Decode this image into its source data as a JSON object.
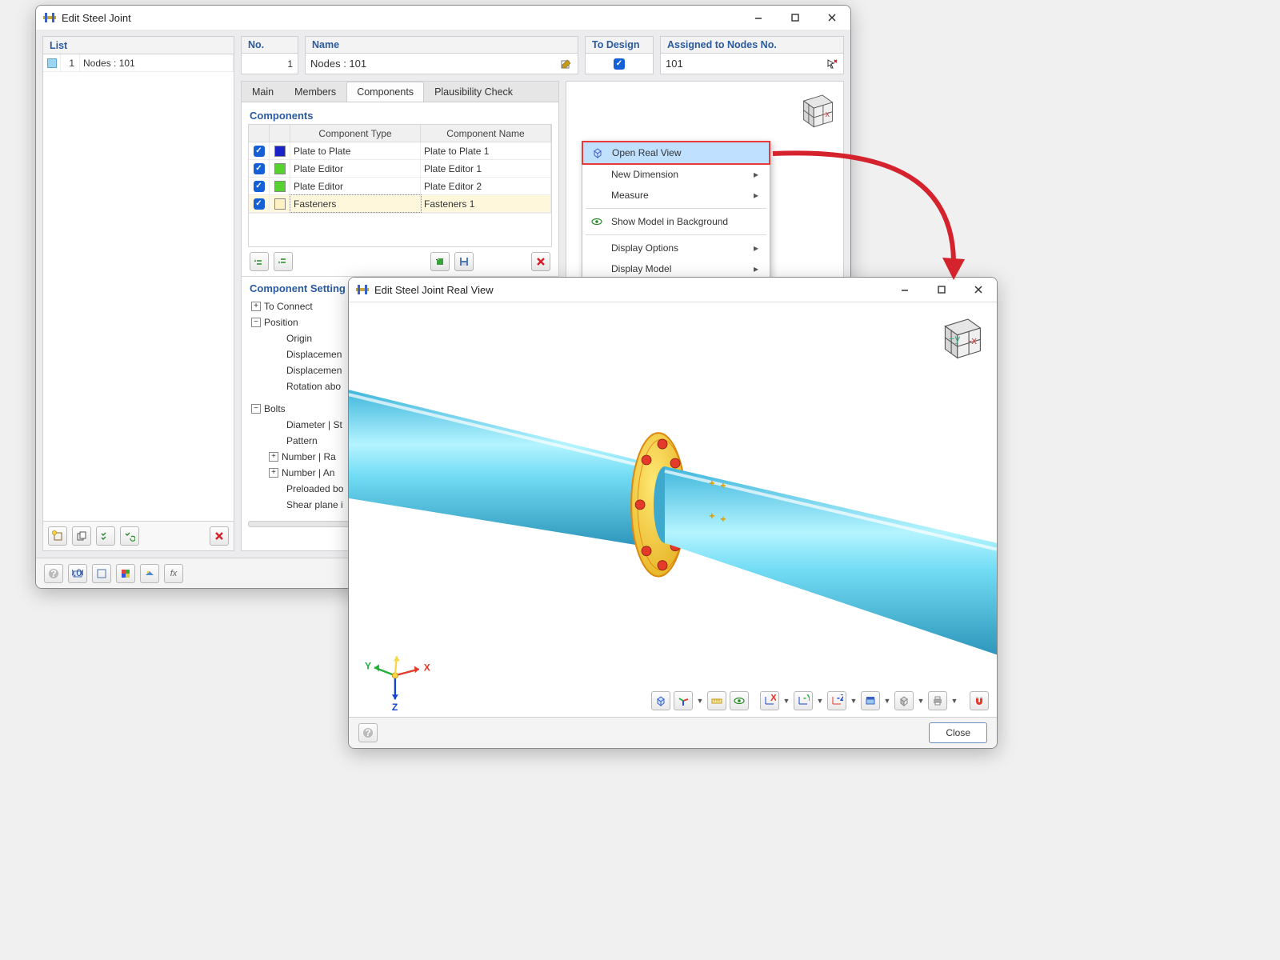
{
  "mainWindow": {
    "title": "Edit Steel Joint",
    "list": {
      "header": "List",
      "items": [
        {
          "index": "1",
          "label": "Nodes : 101"
        }
      ]
    },
    "topFields": {
      "no": {
        "label": "No.",
        "value": "1"
      },
      "name": {
        "label": "Name",
        "value": "Nodes : 101"
      },
      "toDesign": {
        "label": "To Design",
        "checked": true
      },
      "assigned": {
        "label": "Assigned to Nodes No.",
        "value": "101"
      }
    },
    "tabs": [
      "Main",
      "Members",
      "Components",
      "Plausibility Check"
    ],
    "activeTab": 2,
    "components": {
      "title": "Components",
      "headers": {
        "type": "Component Type",
        "name": "Component Name"
      },
      "rows": [
        {
          "checked": true,
          "color": "#1b24c7",
          "type": "Plate to Plate",
          "name": "Plate to Plate 1"
        },
        {
          "checked": true,
          "color": "#56d22f",
          "type": "Plate Editor",
          "name": "Plate Editor 1"
        },
        {
          "checked": true,
          "color": "#56d22f",
          "type": "Plate Editor",
          "name": "Plate Editor 2"
        },
        {
          "checked": true,
          "color": "#fff1c4",
          "type": "Fasteners",
          "name": "Fasteners 1",
          "selected": true
        }
      ]
    },
    "settings": {
      "title": "Component Setting",
      "tree": [
        {
          "exp": "+",
          "label": "To Connect",
          "depth": 0
        },
        {
          "exp": "-",
          "label": "Position",
          "depth": 0
        },
        {
          "exp": "",
          "label": "Origin",
          "depth": 1
        },
        {
          "exp": "",
          "label": "Displacemen",
          "depth": 1
        },
        {
          "exp": "",
          "label": "Displacemen",
          "depth": 1
        },
        {
          "exp": "",
          "label": "Rotation abo",
          "depth": 1
        },
        {
          "exp": "-",
          "label": "Bolts",
          "depth": 0,
          "gapBefore": true
        },
        {
          "exp": "",
          "label": "Diameter | St",
          "depth": 1
        },
        {
          "exp": "",
          "label": "Pattern",
          "depth": 1
        },
        {
          "exp": "+",
          "label": "Number | Ra",
          "depth": 1
        },
        {
          "exp": "+",
          "label": "Number | An",
          "depth": 1
        },
        {
          "exp": "",
          "label": "Preloaded bo",
          "depth": 1
        },
        {
          "exp": "",
          "label": "Shear plane i",
          "depth": 1
        }
      ]
    }
  },
  "contextMenu": {
    "items": [
      {
        "label": "Open Real View",
        "highlight": true,
        "icon": "cube"
      },
      {
        "label": "New Dimension",
        "submenu": true
      },
      {
        "label": "Measure",
        "submenu": true
      },
      {
        "sep": true
      },
      {
        "label": "Show Model in Background",
        "icon": "eye"
      },
      {
        "sep": true
      },
      {
        "label": "Display Options",
        "submenu": true
      },
      {
        "label": "Display Model",
        "submenu": true
      }
    ]
  },
  "realView": {
    "title": "Edit Steel Joint Real View",
    "closeBtn": "Close",
    "tubeColor": "#6ad4f2",
    "tubeHighlight": "#b2f1ff",
    "flangeColor": "#f1c330",
    "flangeOutline": "#e57b00",
    "boltColor": "#e33a2a",
    "axisColors": {
      "x": "#e33a2a",
      "y": "#23b03a",
      "z": "#1545d0"
    },
    "axisLabels": {
      "x": "X",
      "y": "Y",
      "z": "Z"
    }
  },
  "arrowColor": "#d5232e"
}
